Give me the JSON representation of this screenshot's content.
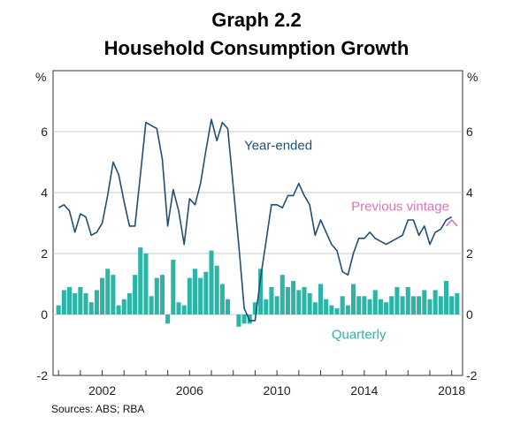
{
  "header": {
    "title": "Graph 2.2",
    "subtitle": "Household Consumption Growth"
  },
  "footer": {
    "source": "Sources: ABS; RBA"
  },
  "chart_data": {
    "type": "line",
    "title": "Graph 2.2",
    "subtitle": "Household Consumption Growth",
    "left_axis_label": "%",
    "right_axis_label": "%",
    "ylim": [
      -2,
      8
    ],
    "yticks": [
      -2,
      0,
      2,
      4,
      6
    ],
    "xlim": [
      1999.75,
      2018.5
    ],
    "xticks": [
      2002,
      2006,
      2010,
      2014,
      2018
    ],
    "grid": "horizontal",
    "colors": {
      "year_ended": "#1f4e79",
      "quarterly": "#2bb5a7",
      "previous_vintage": "#e070b8"
    },
    "annotations": [
      {
        "text": "Year-ended",
        "x": 2008.5,
        "y": 5.4,
        "series": "year_ended"
      },
      {
        "text": "Previous vintage",
        "x": 2013.4,
        "y": 3.4,
        "series": "previous_vintage"
      },
      {
        "text": "Quarterly",
        "x": 2012.5,
        "y": -0.8,
        "series": "quarterly"
      }
    ],
    "series": [
      {
        "name": "Year-ended",
        "type": "line",
        "x": [
          2000.0,
          2000.25,
          2000.5,
          2000.75,
          2001.0,
          2001.25,
          2001.5,
          2001.75,
          2002.0,
          2002.25,
          2002.5,
          2002.75,
          2003.0,
          2003.25,
          2003.5,
          2003.75,
          2004.0,
          2004.25,
          2004.5,
          2004.75,
          2005.0,
          2005.25,
          2005.5,
          2005.75,
          2006.0,
          2006.25,
          2006.5,
          2006.75,
          2007.0,
          2007.25,
          2007.5,
          2007.75,
          2008.0,
          2008.25,
          2008.5,
          2008.75,
          2009.0,
          2009.25,
          2009.5,
          2009.75,
          2010.0,
          2010.25,
          2010.5,
          2010.75,
          2011.0,
          2011.25,
          2011.5,
          2011.75,
          2012.0,
          2012.25,
          2012.5,
          2012.75,
          2013.0,
          2013.25,
          2013.5,
          2013.75,
          2014.0,
          2014.25,
          2014.5,
          2014.75,
          2015.0,
          2015.25,
          2015.5,
          2015.75,
          2016.0,
          2016.25,
          2016.5,
          2016.75,
          2017.0,
          2017.25,
          2017.5,
          2017.75,
          2018.0
        ],
        "values": [
          3.5,
          3.6,
          3.4,
          2.7,
          3.3,
          3.2,
          2.6,
          2.7,
          3.0,
          3.9,
          5.0,
          4.6,
          3.7,
          2.9,
          2.9,
          4.6,
          6.3,
          6.2,
          6.1,
          5.1,
          2.9,
          4.1,
          3.4,
          2.3,
          3.8,
          3.6,
          4.3,
          5.4,
          6.4,
          5.7,
          6.3,
          6.1,
          4.2,
          2.3,
          0.2,
          -0.2,
          -0.2,
          1.2,
          2.4,
          3.6,
          3.6,
          3.5,
          3.9,
          3.9,
          4.3,
          3.9,
          3.6,
          2.6,
          3.1,
          2.7,
          2.3,
          2.1,
          1.4,
          1.3,
          2.0,
          2.5,
          2.5,
          2.7,
          2.5,
          2.4,
          2.3,
          2.4,
          2.5,
          2.6,
          3.1,
          3.1,
          2.6,
          2.9,
          2.3,
          2.7,
          2.8,
          3.1,
          3.2
        ]
      },
      {
        "name": "Previous vintage",
        "type": "line",
        "x": [
          2017.75,
          2018.0,
          2018.25
        ],
        "values": [
          2.9,
          3.1,
          2.9
        ]
      },
      {
        "name": "Quarterly",
        "type": "bar",
        "x": [
          2000.0,
          2000.25,
          2000.5,
          2000.75,
          2001.0,
          2001.25,
          2001.5,
          2001.75,
          2002.0,
          2002.25,
          2002.5,
          2002.75,
          2003.0,
          2003.25,
          2003.5,
          2003.75,
          2004.0,
          2004.25,
          2004.5,
          2004.75,
          2005.0,
          2005.25,
          2005.5,
          2005.75,
          2006.0,
          2006.25,
          2006.5,
          2006.75,
          2007.0,
          2007.25,
          2007.5,
          2007.75,
          2008.0,
          2008.25,
          2008.5,
          2008.75,
          2009.0,
          2009.25,
          2009.5,
          2009.75,
          2010.0,
          2010.25,
          2010.5,
          2010.75,
          2011.0,
          2011.25,
          2011.5,
          2011.75,
          2012.0,
          2012.25,
          2012.5,
          2012.75,
          2013.0,
          2013.25,
          2013.5,
          2013.75,
          2014.0,
          2014.25,
          2014.5,
          2014.75,
          2015.0,
          2015.25,
          2015.5,
          2015.75,
          2016.0,
          2016.25,
          2016.5,
          2016.75,
          2017.0,
          2017.25,
          2017.5,
          2017.75,
          2018.0,
          2018.25
        ],
        "values": [
          0.3,
          0.8,
          0.9,
          0.7,
          0.9,
          0.7,
          0.4,
          0.8,
          1.2,
          1.5,
          1.3,
          0.3,
          0.5,
          0.7,
          1.3,
          2.2,
          2.0,
          0.6,
          1.2,
          1.3,
          -0.3,
          1.8,
          0.4,
          0.3,
          1.2,
          1.5,
          1.2,
          1.4,
          2.1,
          1.6,
          1.0,
          0.5,
          0.0,
          -0.4,
          -0.3,
          -0.3,
          0.4,
          1.5,
          0.5,
          0.9,
          0.6,
          1.3,
          0.9,
          1.1,
          0.8,
          0.9,
          0.7,
          0.4,
          1.0,
          0.5,
          0.3,
          0.2,
          0.6,
          0.3,
          1.0,
          0.6,
          0.6,
          0.5,
          0.8,
          0.5,
          0.4,
          0.6,
          0.9,
          0.6,
          0.9,
          0.6,
          0.6,
          0.8,
          0.5,
          0.8,
          0.6,
          1.1,
          0.6,
          0.7
        ]
      }
    ]
  }
}
